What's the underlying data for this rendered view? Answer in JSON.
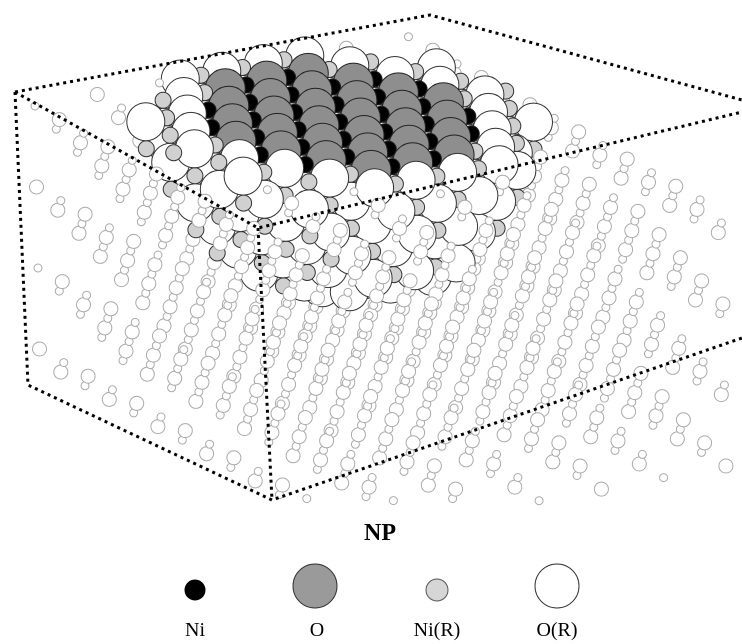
{
  "title": "NP",
  "legend": [
    {
      "label": "Ni"
    },
    {
      "label": "O"
    },
    {
      "label": "Ni(R)"
    },
    {
      "label": "O(R)"
    }
  ]
}
